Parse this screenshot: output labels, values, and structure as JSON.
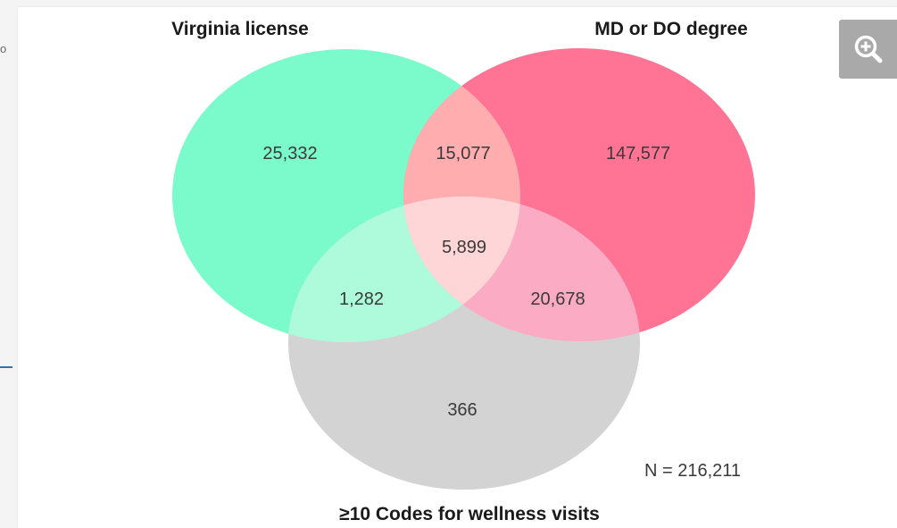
{
  "page": {
    "left_edge_text": "o"
  },
  "zoom": {
    "icon": "zoom-in-icon",
    "color": "#a9a9a9"
  },
  "venn": {
    "set_labels": {
      "virginia_license": "Virginia license",
      "md_or_do_degree": "MD or DO degree",
      "wellness_codes": "≥10 Codes for wellness visits"
    },
    "regions": {
      "virginia_only": "25,332",
      "virginia_and_degree": "15,077",
      "degree_only": "147,577",
      "all_three": "5,899",
      "virginia_and_wellness": "1,282",
      "degree_and_wellness": "20,678",
      "wellness_only": "366"
    },
    "total": "N = 216,211",
    "colors": {
      "virginia_license": "#7bfbcb",
      "md_or_do_degree": "#ff7494",
      "wellness_codes": "#d3d3d3"
    }
  }
}
